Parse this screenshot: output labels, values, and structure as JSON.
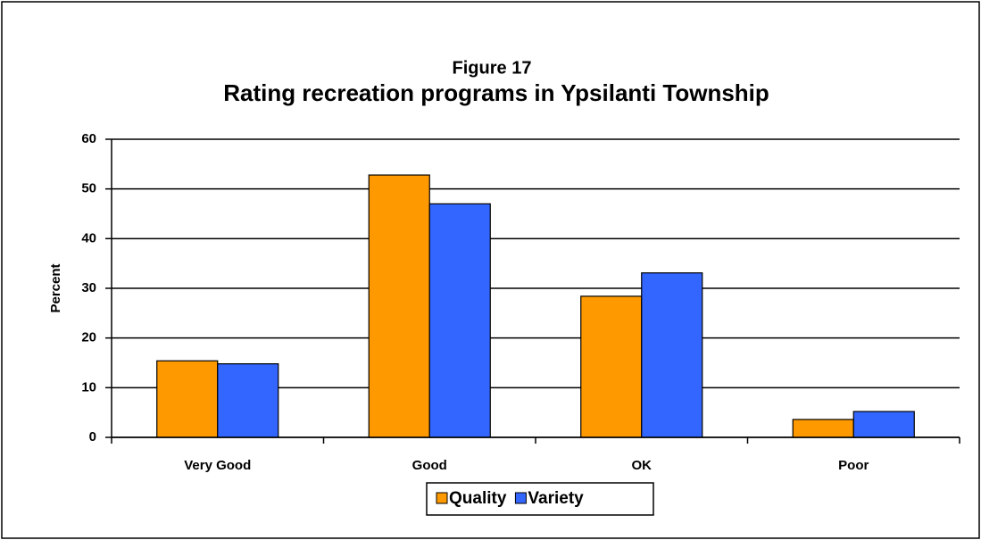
{
  "chart_data": {
    "type": "bar",
    "title": "Figure 17",
    "subtitle": "Rating recreation programs in Ypsilanti Township",
    "y_label": "Percent",
    "categories": [
      "Very Good",
      "Good",
      "OK",
      "Poor"
    ],
    "series": [
      {
        "name": "Quality",
        "color": "#ff9900",
        "values": [
          15.4,
          52.8,
          28.4,
          3.6
        ]
      },
      {
        "name": "Variety",
        "color": "#3366ff",
        "values": [
          14.8,
          47.0,
          33.1,
          5.2
        ]
      }
    ],
    "ylim": [
      0,
      60
    ],
    "yticks": [
      0,
      10,
      20,
      30,
      40,
      50,
      60
    ],
    "grid": true,
    "legend": "bottom"
  }
}
